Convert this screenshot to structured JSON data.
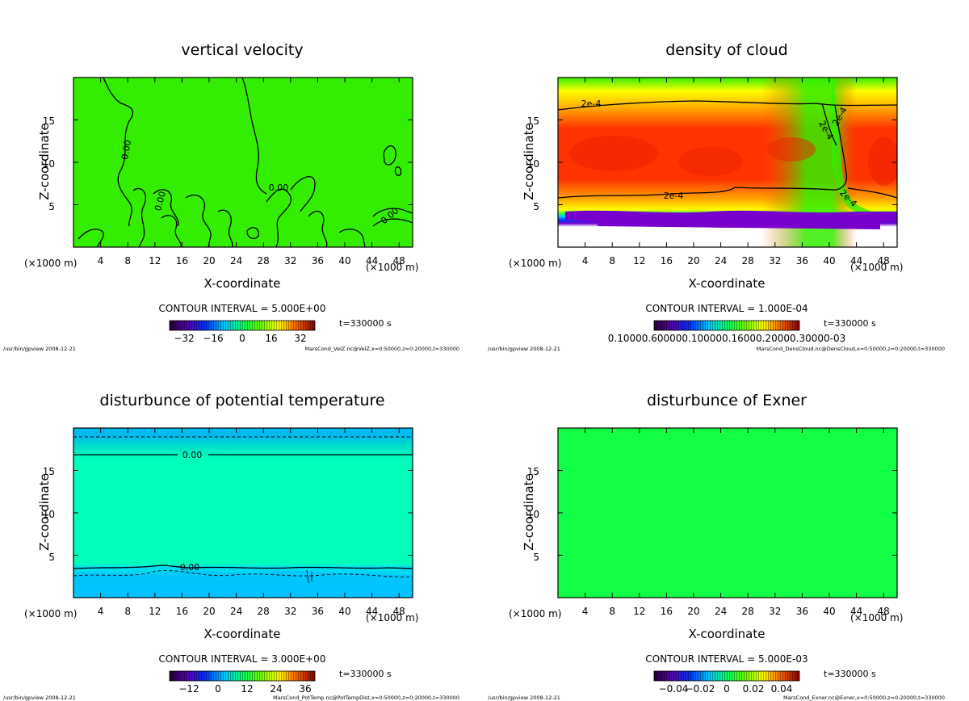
{
  "panels": [
    {
      "title": "vertical velocity",
      "xlabel": "X-coordinate",
      "ylabel": "Z-coordinate",
      "x_unit": "(×1000 m)",
      "xticks": [
        "4",
        "8",
        "12",
        "16",
        "20",
        "24",
        "28",
        "32",
        "36",
        "40",
        "44",
        "48"
      ],
      "yticks": [
        "5",
        "10",
        "15"
      ],
      "contour_interval": "CONTOUR INTERVAL = 5.000E+00",
      "time": "t=330000 s",
      "colorbar_ticks": [
        "−32",
        "−16",
        "0",
        "16",
        "32"
      ],
      "footer_left": "/usr/bin/gpview 2008-12-21",
      "footer_right": "MarsCond_VelZ.nc@VelZ,x=0:50000,z=0:20000,t=330000",
      "contour_labels": [
        "0.00",
        "0.00",
        "0.00",
        "0.00"
      ]
    },
    {
      "title": "density of cloud",
      "xlabel": "X-coordinate",
      "ylabel": "Z-coordinate",
      "x_unit": "(×1000 m)",
      "xticks": [
        "4",
        "8",
        "12",
        "16",
        "20",
        "24",
        "28",
        "32",
        "36",
        "40",
        "44",
        "48"
      ],
      "yticks": [
        "5",
        "10",
        "15"
      ],
      "contour_interval": "CONTOUR INTERVAL = 1.000E-04",
      "time": "t=330000 s",
      "colorbar_ticks_text": "0.10000.600000.100000.16000.20000.30000-03",
      "footer_left": "/usr/bin/gpview 2008-12-21",
      "footer_right": "MarsCond_DensCloud.nc@DensCloud,x=0:50000,z=0:20000,t=330000",
      "contour_labels": [
        "2e-4",
        "2e-4",
        "2e-4",
        "2e-4",
        "2e-4"
      ]
    },
    {
      "title": "disturbunce of potential temperature",
      "xlabel": "X-coordinate",
      "ylabel": "Z-coordinate",
      "x_unit": "(×1000 m)",
      "xticks": [
        "4",
        "8",
        "12",
        "16",
        "20",
        "24",
        "28",
        "32",
        "36",
        "40",
        "44",
        "48"
      ],
      "yticks": [
        "5",
        "10",
        "15"
      ],
      "contour_interval": "CONTOUR INTERVAL = 3.000E+00",
      "time": "t=330000 s",
      "colorbar_ticks": [
        "−12",
        "0",
        "12",
        "24",
        "36"
      ],
      "footer_left": "/usr/bin/gpview 2008-12-21",
      "footer_right": "MarsCond_PotTemp.nc@PotTempDist,x=0:50000,z=0:20000,t=330000",
      "contour_labels": [
        "0.00",
        "0.00"
      ]
    },
    {
      "title": "disturbunce of Exner",
      "xlabel": "X-coordinate",
      "ylabel": "Z-coordinate",
      "x_unit": "(×1000 m)",
      "xticks": [
        "4",
        "8",
        "12",
        "16",
        "20",
        "24",
        "28",
        "32",
        "36",
        "40",
        "44",
        "48"
      ],
      "yticks": [
        "5",
        "10",
        "15"
      ],
      "contour_interval": "CONTOUR INTERVAL = 5.000E-03",
      "time": "t=330000 s",
      "colorbar_ticks": [
        "−0.04",
        "−0.02",
        "0",
        "0.02",
        "0.04"
      ],
      "footer_left": "/usr/bin/gpview 2008-12-21",
      "footer_right": "MarsCond_Exner.nc@Exner,x=0:50000,z=0:20000,t=330000",
      "contour_labels": []
    }
  ],
  "colors": {
    "velz_fill": "#33ee00",
    "exner_fill": "#11ff44",
    "pottemp_fill": "#00ffbb",
    "pottemp_top": "#00ccee",
    "cloud_red": "#ff3300",
    "cloud_yellow": "#ffff00",
    "cloud_green": "#00ff44",
    "cloud_blue": "#0044ff",
    "cloud_purple": "#7700cc"
  },
  "chart_data": [
    {
      "type": "heatmap",
      "title": "vertical velocity",
      "xlabel": "X-coordinate",
      "ylabel": "Z-coordinate",
      "xlim": [
        0,
        50
      ],
      "ylim": [
        0,
        20
      ],
      "xticks": [
        4,
        8,
        12,
        16,
        20,
        24,
        28,
        32,
        36,
        40,
        44,
        48
      ],
      "yticks": [
        5,
        10,
        15
      ],
      "colorbar": {
        "ticks": [
          -32,
          -16,
          0,
          16,
          32
        ]
      },
      "contour_interval": 5.0,
      "time_s": 330000
    },
    {
      "type": "heatmap",
      "title": "density of cloud",
      "xlabel": "X-coordinate",
      "ylabel": "Z-coordinate",
      "xlim": [
        0,
        50
      ],
      "ylim": [
        0,
        20
      ],
      "xticks": [
        4,
        8,
        12,
        16,
        20,
        24,
        28,
        32,
        36,
        40,
        44,
        48
      ],
      "yticks": [
        5,
        10,
        15
      ],
      "contour_interval": 0.0001,
      "time_s": 330000
    },
    {
      "type": "heatmap",
      "title": "disturbunce of potential temperature",
      "xlabel": "X-coordinate",
      "ylabel": "Z-coordinate",
      "xlim": [
        0,
        50
      ],
      "ylim": [
        0,
        20
      ],
      "xticks": [
        4,
        8,
        12,
        16,
        20,
        24,
        28,
        32,
        36,
        40,
        44,
        48
      ],
      "yticks": [
        5,
        10,
        15
      ],
      "colorbar": {
        "ticks": [
          -12,
          0,
          12,
          24,
          36
        ]
      },
      "contour_interval": 3.0,
      "time_s": 330000
    },
    {
      "type": "heatmap",
      "title": "disturbunce of Exner",
      "xlabel": "X-coordinate",
      "ylabel": "Z-coordinate",
      "xlim": [
        0,
        50
      ],
      "ylim": [
        0,
        20
      ],
      "xticks": [
        4,
        8,
        12,
        16,
        20,
        24,
        28,
        32,
        36,
        40,
        44,
        48
      ],
      "yticks": [
        5,
        10,
        15
      ],
      "colorbar": {
        "ticks": [
          -0.04,
          -0.02,
          0,
          0.02,
          0.04
        ]
      },
      "contour_interval": 0.005,
      "time_s": 330000
    }
  ]
}
